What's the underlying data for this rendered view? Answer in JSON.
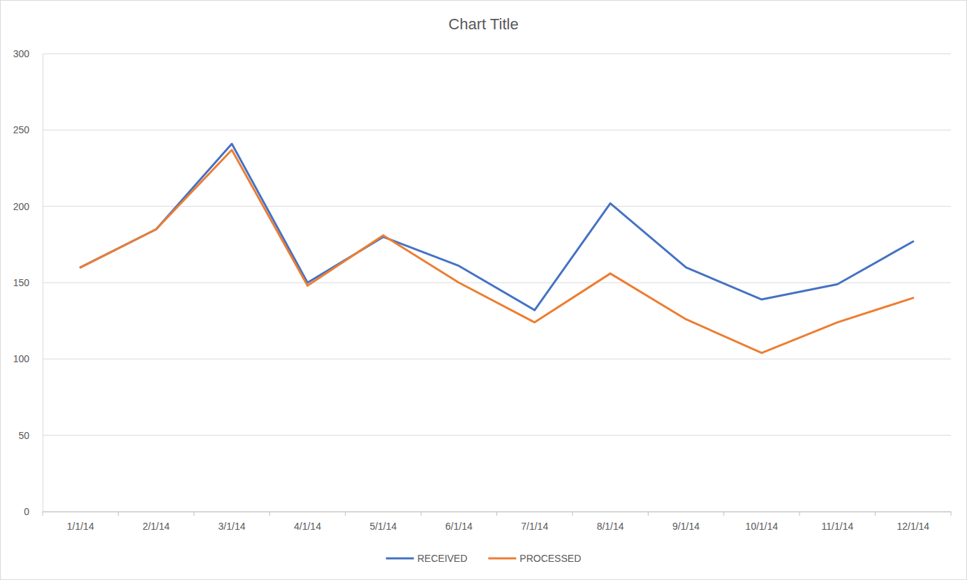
{
  "chart_data": {
    "type": "line",
    "title": "Chart Title",
    "categories": [
      "1/1/14",
      "2/1/14",
      "3/1/14",
      "4/1/14",
      "5/1/14",
      "6/1/14",
      "7/1/14",
      "8/1/14",
      "9/1/14",
      "10/1/14",
      "11/1/14",
      "12/1/14"
    ],
    "series": [
      {
        "name": "RECEIVED",
        "color": "#4472c4",
        "values": [
          160,
          185,
          241,
          150,
          180,
          161,
          132,
          202,
          160,
          139,
          149,
          177
        ]
      },
      {
        "name": "PROCESSED",
        "color": "#ed7d31",
        "values": [
          160,
          185,
          237,
          148,
          181,
          150,
          124,
          156,
          126,
          104,
          124,
          140
        ]
      }
    ],
    "ylim": [
      0,
      300
    ],
    "yticks": [
      0,
      50,
      100,
      150,
      200,
      250,
      300
    ],
    "grid": true,
    "legend": "bottom"
  }
}
